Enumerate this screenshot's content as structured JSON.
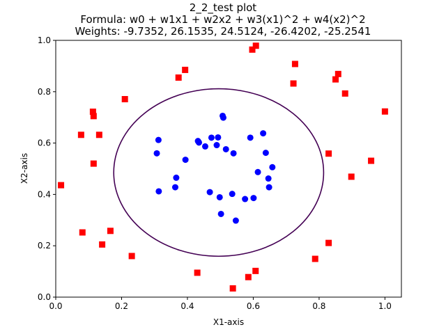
{
  "chart_data": {
    "type": "scatter",
    "title": "2_2_test plot",
    "subtitle_lines": [
      "Formula: w0 + w1x1 + w2x2 + w3(x1)^2 + w4(x2)^2",
      "Weights: -9.7352, 26.1535, 24.5124, -26.4202, -25.2541"
    ],
    "xlabel": "X1-axis",
    "ylabel": "X2-axis",
    "xlim": [
      0.0,
      1.05
    ],
    "ylim": [
      0.0,
      1.0
    ],
    "xticks": [
      0.0,
      0.2,
      0.4,
      0.6,
      0.8,
      1.0
    ],
    "yticks": [
      0.0,
      0.2,
      0.4,
      0.6,
      0.8,
      1.0
    ],
    "xtick_labels": [
      "0.0",
      "0.2",
      "0.4",
      "0.6",
      "0.8",
      "1.0"
    ],
    "ytick_labels": [
      "0.0",
      "0.2",
      "0.4",
      "0.6",
      "0.8",
      "1.0"
    ],
    "grid": false,
    "legend": null,
    "decision_boundary": {
      "weights": [
        -9.7352,
        26.1535,
        24.5124,
        -26.4202,
        -25.2541
      ],
      "color": "#440154"
    },
    "series": [
      {
        "marker": "circle",
        "color": "#0000ff",
        "points": [
          [
            0.312,
            0.612
          ],
          [
            0.307,
            0.56
          ],
          [
            0.313,
            0.412
          ],
          [
            0.366,
            0.465
          ],
          [
            0.363,
            0.428
          ],
          [
            0.394,
            0.535
          ],
          [
            0.432,
            0.608
          ],
          [
            0.435,
            0.602
          ],
          [
            0.454,
            0.587
          ],
          [
            0.468,
            0.409
          ],
          [
            0.473,
            0.621
          ],
          [
            0.489,
            0.592
          ],
          [
            0.493,
            0.622
          ],
          [
            0.498,
            0.389
          ],
          [
            0.502,
            0.324
          ],
          [
            0.507,
            0.706
          ],
          [
            0.509,
            0.699
          ],
          [
            0.517,
            0.576
          ],
          [
            0.536,
            0.402
          ],
          [
            0.54,
            0.56
          ],
          [
            0.547,
            0.298
          ],
          [
            0.575,
            0.382
          ],
          [
            0.591,
            0.621
          ],
          [
            0.601,
            0.386
          ],
          [
            0.614,
            0.487
          ],
          [
            0.63,
            0.638
          ],
          [
            0.638,
            0.562
          ],
          [
            0.646,
            0.462
          ],
          [
            0.648,
            0.428
          ],
          [
            0.658,
            0.506
          ]
        ]
      },
      {
        "marker": "square",
        "color": "#ff0000",
        "points": [
          [
            0.016,
            0.436
          ],
          [
            0.077,
            0.632
          ],
          [
            0.081,
            0.252
          ],
          [
            0.113,
            0.722
          ],
          [
            0.115,
            0.705
          ],
          [
            0.115,
            0.52
          ],
          [
            0.132,
            0.632
          ],
          [
            0.141,
            0.205
          ],
          [
            0.166,
            0.258
          ],
          [
            0.21,
            0.771
          ],
          [
            0.231,
            0.16
          ],
          [
            0.373,
            0.855
          ],
          [
            0.393,
            0.885
          ],
          [
            0.43,
            0.095
          ],
          [
            0.538,
            0.034
          ],
          [
            0.585,
            0.078
          ],
          [
            0.597,
            0.964
          ],
          [
            0.608,
            0.979
          ],
          [
            0.607,
            0.102
          ],
          [
            0.722,
            0.832
          ],
          [
            0.727,
            0.908
          ],
          [
            0.788,
            0.149
          ],
          [
            0.829,
            0.559
          ],
          [
            0.829,
            0.211
          ],
          [
            0.85,
            0.848
          ],
          [
            0.858,
            0.869
          ],
          [
            0.879,
            0.793
          ],
          [
            0.898,
            0.469
          ],
          [
            0.958,
            0.531
          ],
          [
            1.0,
            0.723
          ]
        ]
      }
    ]
  }
}
